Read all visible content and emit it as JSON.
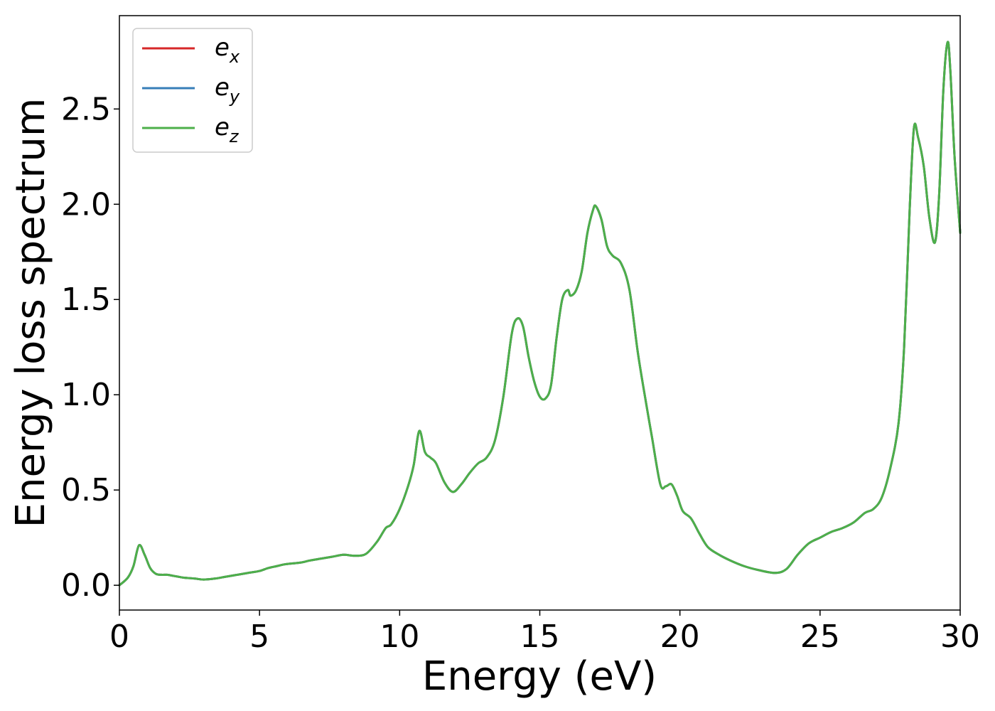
{
  "chart_data": {
    "type": "line",
    "xlabel": "Energy (eV)",
    "ylabel": "Energy loss spectrum",
    "xlim": [
      0,
      30
    ],
    "ylim": [
      -0.13,
      2.99
    ],
    "xticks": [
      "0",
      "5",
      "10",
      "15",
      "20",
      "25",
      "30"
    ],
    "yticks": [
      "0.0",
      "0.5",
      "1.0",
      "1.5",
      "2.0",
      "2.5"
    ],
    "grid": false,
    "legend_position": "upper-left",
    "x": [
      0.0,
      0.3,
      0.5,
      0.7,
      0.9,
      1.1,
      1.3,
      1.5,
      1.7,
      1.9,
      2.1,
      2.3,
      2.7,
      3.0,
      3.4,
      3.8,
      4.2,
      4.6,
      5.0,
      5.3,
      5.6,
      5.9,
      6.2,
      6.5,
      6.8,
      7.2,
      7.6,
      8.0,
      8.4,
      8.8,
      9.2,
      9.5,
      9.7,
      10.0,
      10.3,
      10.5,
      10.7,
      10.9,
      11.1,
      11.3,
      11.6,
      11.9,
      12.2,
      12.5,
      12.8,
      13.1,
      13.4,
      13.7,
      14.0,
      14.2,
      14.4,
      14.6,
      14.8,
      15.0,
      15.2,
      15.4,
      15.6,
      15.8,
      16.0,
      16.1,
      16.3,
      16.5,
      16.7,
      16.9,
      17.0,
      17.2,
      17.4,
      17.6,
      17.9,
      18.2,
      18.5,
      18.8,
      19.0,
      19.3,
      19.5,
      19.7,
      19.9,
      20.1,
      20.4,
      20.7,
      21.0,
      21.4,
      21.8,
      22.3,
      22.8,
      23.4,
      23.8,
      24.2,
      24.6,
      25.0,
      25.4,
      25.8,
      26.2,
      26.6,
      26.9,
      27.2,
      27.5,
      27.8,
      28.0,
      28.2,
      28.35,
      28.5,
      28.7,
      28.9,
      29.1,
      29.25,
      29.4,
      29.55,
      29.65,
      29.8,
      30.0
    ],
    "series": [
      {
        "name": "e_x",
        "legend_label": "e",
        "legend_sub": "x",
        "color": "#d62728",
        "values": [
          0.0,
          0.04,
          0.1,
          0.21,
          0.16,
          0.09,
          0.06,
          0.055,
          0.055,
          0.05,
          0.045,
          0.04,
          0.035,
          0.03,
          0.035,
          0.045,
          0.055,
          0.065,
          0.075,
          0.09,
          0.1,
          0.11,
          0.115,
          0.12,
          0.13,
          0.14,
          0.15,
          0.16,
          0.155,
          0.165,
          0.23,
          0.3,
          0.32,
          0.4,
          0.52,
          0.63,
          0.81,
          0.7,
          0.67,
          0.64,
          0.54,
          0.49,
          0.53,
          0.59,
          0.64,
          0.67,
          0.76,
          0.99,
          1.32,
          1.4,
          1.36,
          1.2,
          1.07,
          0.99,
          0.98,
          1.05,
          1.3,
          1.5,
          1.55,
          1.52,
          1.55,
          1.65,
          1.85,
          1.97,
          1.99,
          1.92,
          1.78,
          1.73,
          1.69,
          1.55,
          1.22,
          0.95,
          0.78,
          0.53,
          0.52,
          0.53,
          0.47,
          0.39,
          0.35,
          0.27,
          0.2,
          0.16,
          0.13,
          0.1,
          0.08,
          0.065,
          0.085,
          0.16,
          0.22,
          0.25,
          0.28,
          0.3,
          0.33,
          0.38,
          0.4,
          0.46,
          0.61,
          0.85,
          1.25,
          1.98,
          2.4,
          2.35,
          2.2,
          1.93,
          1.8,
          2.05,
          2.6,
          2.85,
          2.7,
          2.25,
          1.85
        ]
      },
      {
        "name": "e_y",
        "legend_label": "e",
        "legend_sub": "y",
        "color": "#377eb8",
        "values": [
          0.0,
          0.04,
          0.1,
          0.21,
          0.16,
          0.09,
          0.06,
          0.055,
          0.055,
          0.05,
          0.045,
          0.04,
          0.035,
          0.03,
          0.035,
          0.045,
          0.055,
          0.065,
          0.075,
          0.09,
          0.1,
          0.11,
          0.115,
          0.12,
          0.13,
          0.14,
          0.15,
          0.16,
          0.155,
          0.165,
          0.23,
          0.3,
          0.32,
          0.4,
          0.52,
          0.63,
          0.81,
          0.7,
          0.67,
          0.64,
          0.54,
          0.49,
          0.53,
          0.59,
          0.64,
          0.67,
          0.76,
          0.99,
          1.32,
          1.4,
          1.36,
          1.2,
          1.07,
          0.99,
          0.98,
          1.05,
          1.3,
          1.5,
          1.55,
          1.52,
          1.55,
          1.65,
          1.85,
          1.97,
          1.99,
          1.92,
          1.78,
          1.73,
          1.69,
          1.55,
          1.22,
          0.95,
          0.78,
          0.53,
          0.52,
          0.53,
          0.47,
          0.39,
          0.35,
          0.27,
          0.2,
          0.16,
          0.13,
          0.1,
          0.08,
          0.065,
          0.085,
          0.16,
          0.22,
          0.25,
          0.28,
          0.3,
          0.33,
          0.38,
          0.4,
          0.46,
          0.61,
          0.85,
          1.25,
          1.98,
          2.4,
          2.35,
          2.2,
          1.93,
          1.8,
          2.05,
          2.6,
          2.85,
          2.7,
          2.25,
          1.85
        ]
      },
      {
        "name": "e_z",
        "legend_label": "e",
        "legend_sub": "z",
        "color": "#4daf4a",
        "values": [
          0.0,
          0.04,
          0.1,
          0.21,
          0.16,
          0.09,
          0.06,
          0.055,
          0.055,
          0.05,
          0.045,
          0.04,
          0.035,
          0.03,
          0.035,
          0.045,
          0.055,
          0.065,
          0.075,
          0.09,
          0.1,
          0.11,
          0.115,
          0.12,
          0.13,
          0.14,
          0.15,
          0.16,
          0.155,
          0.165,
          0.23,
          0.3,
          0.32,
          0.4,
          0.52,
          0.63,
          0.81,
          0.7,
          0.67,
          0.64,
          0.54,
          0.49,
          0.53,
          0.59,
          0.64,
          0.67,
          0.76,
          0.99,
          1.32,
          1.4,
          1.36,
          1.2,
          1.07,
          0.99,
          0.98,
          1.05,
          1.3,
          1.5,
          1.55,
          1.52,
          1.55,
          1.65,
          1.85,
          1.97,
          1.99,
          1.92,
          1.78,
          1.73,
          1.69,
          1.55,
          1.22,
          0.95,
          0.78,
          0.53,
          0.52,
          0.53,
          0.47,
          0.39,
          0.35,
          0.27,
          0.2,
          0.16,
          0.13,
          0.1,
          0.08,
          0.065,
          0.085,
          0.16,
          0.22,
          0.25,
          0.28,
          0.3,
          0.33,
          0.38,
          0.4,
          0.46,
          0.61,
          0.85,
          1.25,
          1.98,
          2.4,
          2.35,
          2.2,
          1.93,
          1.8,
          2.05,
          2.6,
          2.85,
          2.7,
          2.25,
          1.85
        ]
      }
    ]
  }
}
